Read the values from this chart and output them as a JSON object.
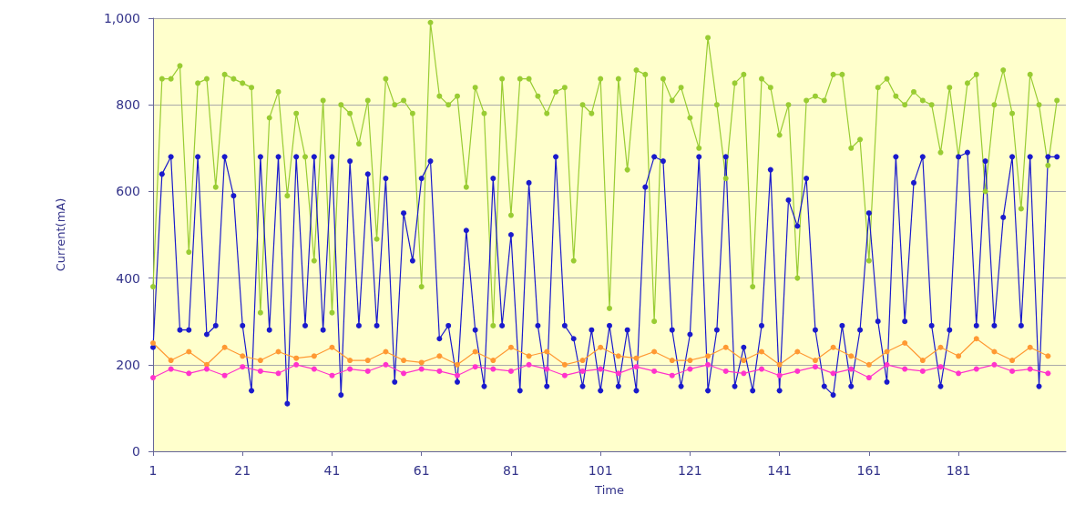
{
  "chart_data": {
    "type": "line",
    "xlabel": "Time",
    "ylabel": "Current(mA)",
    "xlim": [
      1,
      205
    ],
    "xticks": [
      1,
      21,
      41,
      61,
      81,
      101,
      121,
      141,
      161,
      181
    ],
    "ylim": [
      0,
      1000
    ],
    "yticks": [
      0,
      200,
      400,
      600,
      800,
      {
        "value": 1000,
        "label": "1,000"
      }
    ],
    "grid": "y",
    "marker": "circle",
    "line_style": "solid",
    "series": [
      {
        "color": "#99cc33",
        "x": [
          1,
          3,
          5,
          7,
          9,
          11,
          13,
          15,
          17,
          19,
          21,
          23,
          25,
          27,
          29,
          31,
          33,
          35,
          37,
          39,
          41,
          43,
          45,
          47,
          49,
          51,
          53,
          55,
          57,
          59,
          61,
          63,
          65,
          67,
          69,
          71,
          73,
          75,
          77,
          79,
          81,
          83,
          85,
          87,
          89,
          91,
          93,
          95,
          97,
          99,
          101,
          103,
          105,
          107,
          109,
          111,
          113,
          115,
          117,
          119,
          121,
          123,
          125,
          127,
          129,
          131,
          133,
          135,
          137,
          139,
          141,
          143,
          145,
          147,
          149,
          151,
          153,
          155,
          157,
          159,
          161,
          163,
          165,
          167,
          169,
          171,
          173,
          175,
          177,
          179,
          181,
          183,
          185,
          187,
          189,
          191,
          193,
          195,
          197,
          199,
          201,
          203
        ],
        "values": [
          380,
          860,
          860,
          890,
          460,
          850,
          860,
          610,
          870,
          860,
          850,
          840,
          320,
          770,
          830,
          590,
          780,
          680,
          440,
          810,
          320,
          800,
          780,
          710,
          810,
          490,
          860,
          800,
          810,
          780,
          380,
          990,
          820,
          800,
          820,
          610,
          840,
          780,
          290,
          860,
          545,
          860,
          860,
          820,
          780,
          830,
          840,
          440,
          800,
          780,
          860,
          330,
          860,
          650,
          880,
          870,
          300,
          860,
          810,
          840,
          770,
          700,
          955,
          800,
          630,
          850,
          870,
          380,
          860,
          840,
          730,
          800,
          400,
          810,
          820,
          810,
          870,
          870,
          700,
          720,
          440,
          840,
          860,
          820,
          800,
          830,
          810,
          800,
          690,
          840,
          680,
          850,
          870,
          600,
          800,
          880,
          780,
          560,
          870,
          800,
          660,
          810
        ]
      },
      {
        "color": "#1a1acc",
        "x": [
          1,
          3,
          5,
          7,
          9,
          11,
          13,
          15,
          17,
          19,
          21,
          23,
          25,
          27,
          29,
          31,
          33,
          35,
          37,
          39,
          41,
          43,
          45,
          47,
          49,
          51,
          53,
          55,
          57,
          59,
          61,
          63,
          65,
          67,
          69,
          71,
          73,
          75,
          77,
          79,
          81,
          83,
          85,
          87,
          89,
          91,
          93,
          95,
          97,
          99,
          101,
          103,
          105,
          107,
          109,
          111,
          113,
          115,
          117,
          119,
          121,
          123,
          125,
          127,
          129,
          131,
          133,
          135,
          137,
          139,
          141,
          143,
          145,
          147,
          149,
          151,
          153,
          155,
          157,
          159,
          161,
          163,
          165,
          167,
          169,
          171,
          173,
          175,
          177,
          179,
          181,
          183,
          185,
          187,
          189,
          191,
          193,
          195,
          197,
          199,
          201,
          203
        ],
        "values": [
          240,
          640,
          680,
          280,
          280,
          680,
          270,
          290,
          680,
          590,
          290,
          140,
          680,
          280,
          680,
          110,
          680,
          290,
          680,
          280,
          680,
          130,
          670,
          290,
          640,
          290,
          630,
          160,
          550,
          440,
          630,
          670,
          260,
          290,
          160,
          510,
          280,
          150,
          630,
          290,
          500,
          140,
          620,
          290,
          150,
          680,
          290,
          260,
          150,
          280,
          140,
          290,
          150,
          280,
          140,
          610,
          680,
          670,
          280,
          150,
          270,
          680,
          140,
          280,
          680,
          150,
          240,
          140,
          290,
          650,
          140,
          580,
          520,
          630,
          280,
          150,
          130,
          290,
          150,
          280,
          550,
          300,
          160,
          680,
          300,
          620,
          680,
          290,
          150,
          280,
          680,
          690,
          290,
          670,
          290,
          540,
          680,
          290,
          680,
          150,
          680,
          680
        ]
      },
      {
        "color": "#ff9933",
        "x": [
          1,
          5,
          9,
          13,
          17,
          21,
          25,
          29,
          33,
          37,
          41,
          45,
          49,
          53,
          57,
          61,
          65,
          69,
          73,
          77,
          81,
          85,
          89,
          93,
          97,
          101,
          105,
          109,
          113,
          117,
          121,
          125,
          129,
          133,
          137,
          141,
          145,
          149,
          153,
          157,
          161,
          165,
          169,
          173,
          177,
          181,
          185,
          189,
          193,
          197,
          201
        ],
        "values": [
          250,
          210,
          230,
          200,
          240,
          220,
          210,
          230,
          215,
          220,
          240,
          210,
          210,
          230,
          210,
          205,
          220,
          200,
          230,
          210,
          240,
          220,
          230,
          200,
          210,
          240,
          220,
          215,
          230,
          210,
          210,
          220,
          240,
          210,
          230,
          200,
          230,
          210,
          240,
          220,
          200,
          230,
          250,
          210,
          240,
          220,
          260,
          230,
          210,
          240,
          220
        ]
      },
      {
        "color": "#ff33cc",
        "x": [
          1,
          5,
          9,
          13,
          17,
          21,
          25,
          29,
          33,
          37,
          41,
          45,
          49,
          53,
          57,
          61,
          65,
          69,
          73,
          77,
          81,
          85,
          89,
          93,
          97,
          101,
          105,
          109,
          113,
          117,
          121,
          125,
          129,
          133,
          137,
          141,
          145,
          149,
          153,
          157,
          161,
          165,
          169,
          173,
          177,
          181,
          185,
          189,
          193,
          197,
          201
        ],
        "values": [
          170,
          190,
          180,
          190,
          175,
          195,
          185,
          180,
          200,
          190,
          175,
          190,
          185,
          200,
          180,
          190,
          185,
          175,
          195,
          190,
          185,
          200,
          190,
          175,
          185,
          190,
          180,
          195,
          185,
          175,
          190,
          200,
          185,
          180,
          190,
          175,
          185,
          195,
          180,
          190,
          170,
          200,
          190,
          185,
          195,
          180,
          190,
          200,
          185,
          190,
          180
        ]
      }
    ]
  }
}
